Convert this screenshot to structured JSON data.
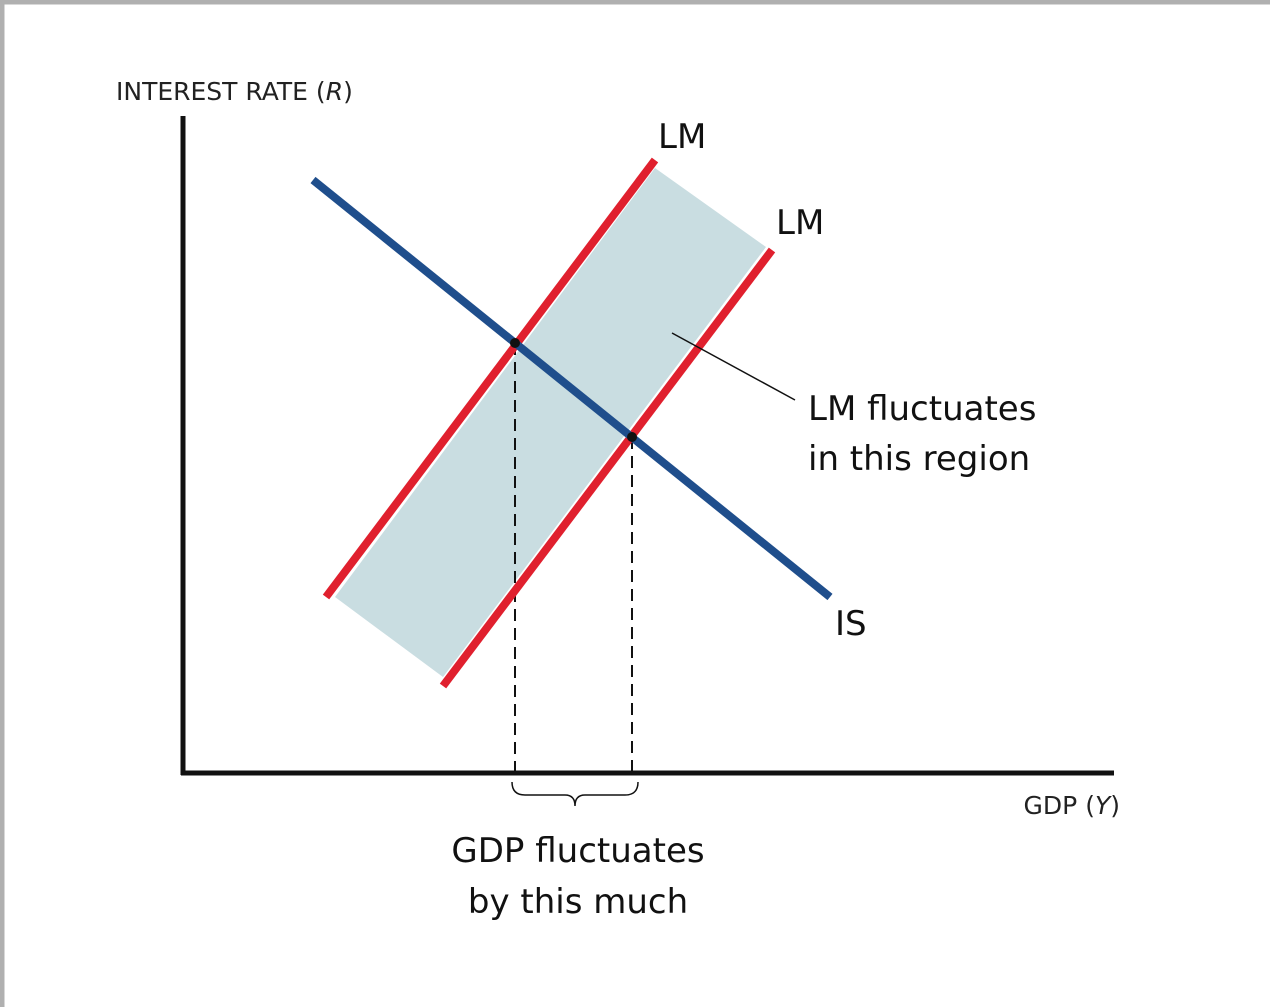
{
  "y_axis_label": [
    "INTEREST RATE (",
    "R",
    ")"
  ],
  "x_axis_label": [
    "GDP (",
    "Y",
    ")"
  ],
  "curves": [
    {
      "label": "LM"
    },
    {
      "label": "LM"
    },
    {
      "label": "IS"
    }
  ],
  "annotations": {
    "region": [
      "LM fluctuates",
      "in this region"
    ],
    "gdp": [
      "GDP fluctuates",
      "by this much"
    ]
  }
}
